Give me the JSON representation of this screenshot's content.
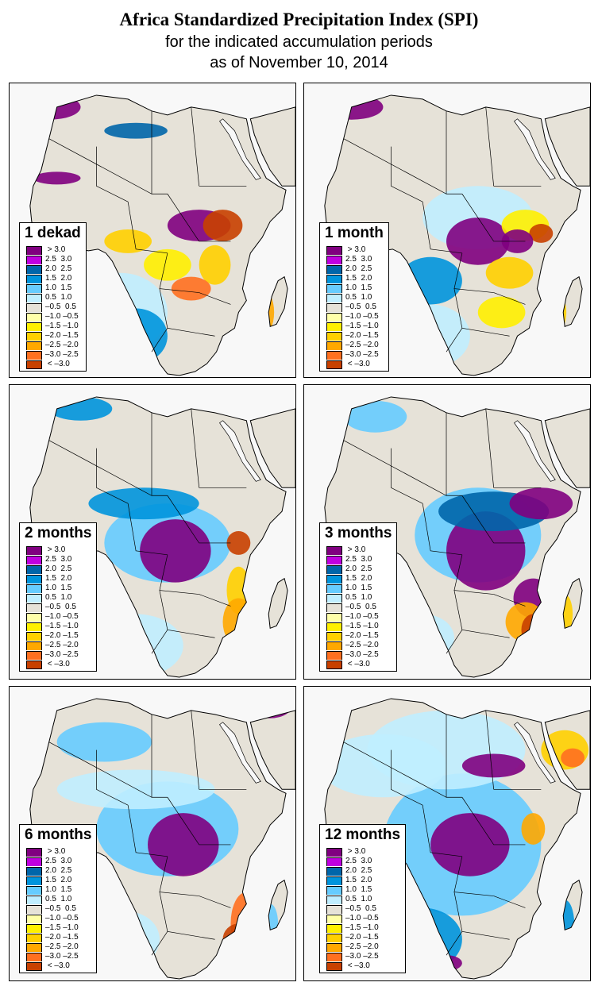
{
  "title": {
    "line1": "Africa Standardized Precipitation Index (SPI)",
    "line2": "for the indicated accumulation periods",
    "line3": "as of November 10, 2014"
  },
  "legend_scale": [
    {
      "label": " > 3.0",
      "color": "#800080"
    },
    {
      "label": "2.5  3.0",
      "color": "#C000E0"
    },
    {
      "label": "2.0  2.5",
      "color": "#0066AA"
    },
    {
      "label": "1.5  2.0",
      "color": "#0095DD"
    },
    {
      "label": "1.0  1.5",
      "color": "#66CCFF"
    },
    {
      "label": "0.5  1.0",
      "color": "#C0EEFF"
    },
    {
      "label": "–0.5  0.5",
      "color": "#E6E2D8"
    },
    {
      "label": "–1.0 –0.5",
      "color": "#FFFFA8"
    },
    {
      "label": "–1.5 –1.0",
      "color": "#FFF000"
    },
    {
      "label": "–2.0 –1.5",
      "color": "#FFD000"
    },
    {
      "label": "–2.5 –2.0",
      "color": "#FFA800"
    },
    {
      "label": "–3.0 –2.5",
      "color": "#FF7020"
    },
    {
      "label": " < –3.0",
      "color": "#C84000"
    }
  ],
  "panels": [
    {
      "label": "1 dekad",
      "dominant": "mixed; wet Congo Basin & Gulf of Guinea, dry East Africa & Madagascar",
      "blobs": [
        [
          50,
          30,
          40,
          16,
          0
        ],
        [
          160,
          60,
          40,
          10,
          2
        ],
        [
          60,
          120,
          30,
          8,
          0
        ],
        [
          50,
          240,
          30,
          18,
          0
        ],
        [
          240,
          180,
          40,
          20,
          0
        ],
        [
          150,
          200,
          30,
          15,
          9
        ],
        [
          270,
          180,
          25,
          20,
          12
        ],
        [
          260,
          230,
          20,
          25,
          9
        ],
        [
          320,
          290,
          15,
          30,
          10
        ],
        [
          140,
          290,
          60,
          50,
          5
        ],
        [
          160,
          320,
          40,
          35,
          3
        ],
        [
          200,
          230,
          30,
          20,
          8
        ],
        [
          230,
          260,
          25,
          15,
          11
        ]
      ]
    },
    {
      "label": "1 month",
      "dominant": "wet Central Africa, dry East Africa",
      "blobs": [
        [
          60,
          30,
          40,
          16,
          0
        ],
        [
          220,
          170,
          70,
          40,
          5
        ],
        [
          220,
          200,
          40,
          30,
          0
        ],
        [
          160,
          250,
          40,
          30,
          3
        ],
        [
          260,
          240,
          30,
          20,
          9
        ],
        [
          280,
          180,
          30,
          20,
          8
        ],
        [
          300,
          190,
          15,
          12,
          12
        ],
        [
          270,
          200,
          20,
          15,
          0
        ],
        [
          250,
          290,
          30,
          20,
          8
        ],
        [
          320,
          290,
          12,
          25,
          9
        ],
        [
          60,
          240,
          40,
          20,
          3
        ],
        [
          160,
          320,
          50,
          40,
          5
        ]
      ]
    },
    {
      "label": "2 months",
      "dominant": "wet Central Africa & West Africa coast",
      "blobs": [
        [
          60,
          240,
          40,
          20,
          0
        ],
        [
          200,
          200,
          80,
          50,
          4
        ],
        [
          210,
          210,
          45,
          40,
          0
        ],
        [
          170,
          150,
          70,
          20,
          3
        ],
        [
          290,
          200,
          15,
          15,
          12
        ],
        [
          290,
          260,
          15,
          30,
          9
        ],
        [
          160,
          330,
          60,
          40,
          5
        ],
        [
          290,
          300,
          20,
          30,
          10
        ],
        [
          320,
          310,
          10,
          25,
          7
        ],
        [
          330,
          20,
          30,
          15,
          0
        ],
        [
          90,
          30,
          40,
          15,
          3
        ]
      ]
    },
    {
      "label": "3 months",
      "dominant": "very wet Central Africa & Ethiopia, dry Mozambique",
      "blobs": [
        [
          60,
          230,
          40,
          20,
          0
        ],
        [
          220,
          190,
          80,
          60,
          4
        ],
        [
          230,
          210,
          50,
          50,
          0
        ],
        [
          240,
          160,
          70,
          25,
          2
        ],
        [
          300,
          150,
          40,
          20,
          0
        ],
        [
          290,
          270,
          25,
          25,
          0
        ],
        [
          280,
          300,
          25,
          25,
          10
        ],
        [
          290,
          310,
          15,
          20,
          12
        ],
        [
          150,
          320,
          40,
          30,
          5
        ],
        [
          330,
          20,
          30,
          15,
          0
        ],
        [
          90,
          40,
          40,
          20,
          4
        ],
        [
          330,
          290,
          10,
          25,
          9
        ]
      ]
    },
    {
      "label": "6 months",
      "dominant": "wet Sahel & Central Africa, dry SE Africa",
      "blobs": [
        [
          60,
          230,
          40,
          20,
          0
        ],
        [
          200,
          180,
          90,
          60,
          4
        ],
        [
          220,
          200,
          45,
          40,
          0
        ],
        [
          160,
          130,
          100,
          25,
          5
        ],
        [
          120,
          70,
          60,
          25,
          4
        ],
        [
          300,
          300,
          20,
          40,
          11
        ],
        [
          290,
          320,
          20,
          20,
          12
        ],
        [
          150,
          320,
          40,
          35,
          5
        ],
        [
          330,
          20,
          30,
          20,
          0
        ],
        [
          330,
          300,
          10,
          25,
          4
        ]
      ]
    },
    {
      "label": "12 months",
      "dominant": "wet over most of the continent, dry Arabia & Kenya",
      "blobs": [
        [
          60,
          230,
          40,
          20,
          0
        ],
        [
          200,
          200,
          100,
          90,
          4
        ],
        [
          210,
          200,
          50,
          40,
          0
        ],
        [
          180,
          80,
          100,
          50,
          5
        ],
        [
          240,
          100,
          40,
          15,
          0
        ],
        [
          100,
          100,
          80,
          40,
          5
        ],
        [
          330,
          80,
          30,
          25,
          9
        ],
        [
          340,
          90,
          15,
          12,
          11
        ],
        [
          290,
          180,
          15,
          20,
          10
        ],
        [
          150,
          320,
          50,
          40,
          3
        ],
        [
          180,
          350,
          20,
          10,
          0
        ],
        [
          330,
          300,
          12,
          30,
          3
        ]
      ]
    }
  ]
}
